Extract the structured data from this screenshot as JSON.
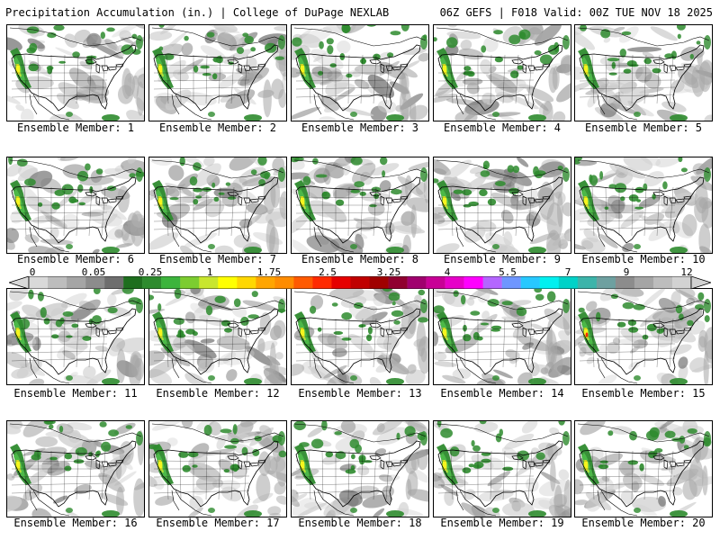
{
  "header": {
    "left": "Precipitation Accumulation (in.) | College of DuPage NEXLAB",
    "right": "06Z GEFS | F018 Valid: 00Z TUE NOV 18 2025"
  },
  "panels": [
    {
      "label": "Ensemble Member: 1"
    },
    {
      "label": "Ensemble Member: 2"
    },
    {
      "label": "Ensemble Member: 3"
    },
    {
      "label": "Ensemble Member: 4"
    },
    {
      "label": "Ensemble Member: 5"
    },
    {
      "label": "Ensemble Member: 6"
    },
    {
      "label": "Ensemble Member: 7"
    },
    {
      "label": "Ensemble Member: 8"
    },
    {
      "label": "Ensemble Member: 9"
    },
    {
      "label": "Ensemble Member: 10"
    },
    {
      "label": "Ensemble Member: 11"
    },
    {
      "label": "Ensemble Member: 12"
    },
    {
      "label": "Ensemble Member: 13"
    },
    {
      "label": "Ensemble Member: 14"
    },
    {
      "label": "Ensemble Member: 15"
    },
    {
      "label": "Ensemble Member: 16"
    },
    {
      "label": "Ensemble Member: 17"
    },
    {
      "label": "Ensemble Member: 18"
    },
    {
      "label": "Ensemble Member: 19"
    },
    {
      "label": "Ensemble Member: 20"
    }
  ],
  "colorbar": {
    "tick_labels": [
      "0",
      "0.05",
      "0.25",
      "1",
      "1.75",
      "2.5",
      "3.25",
      "4",
      "5.5",
      "7",
      "9",
      "12"
    ],
    "colors": [
      "#d9d9d9",
      "#bdbdbd",
      "#a5a5a5",
      "#8c8c8c",
      "#6e6e6e",
      "#1e6e1e",
      "#2e8b2e",
      "#3cb43c",
      "#7ccc30",
      "#c8e62e",
      "#ffff00",
      "#ffd700",
      "#ffa500",
      "#ff8c00",
      "#ff5a00",
      "#ff2a00",
      "#e60000",
      "#c00000",
      "#a00000",
      "#900030",
      "#a0006e",
      "#c80096",
      "#e600c8",
      "#ff00ff",
      "#b466ff",
      "#6e96ff",
      "#28c8ff",
      "#00f0f0",
      "#00d2c8",
      "#3cb4aa",
      "#6ea0a0",
      "#8c8c8c",
      "#a5a5a5",
      "#bdbdbd",
      "#d2d2d2"
    ]
  },
  "map_colors": {
    "light_gray": "#cfcfcf",
    "mid_gray": "#a6a6a6",
    "dark_gray": "#7c7c7c",
    "green": "#2e8b2e",
    "light_green": "#4cb848",
    "yellow_green": "#b8e03a",
    "yellow": "#f5f51e",
    "red": "#ff2a00"
  }
}
